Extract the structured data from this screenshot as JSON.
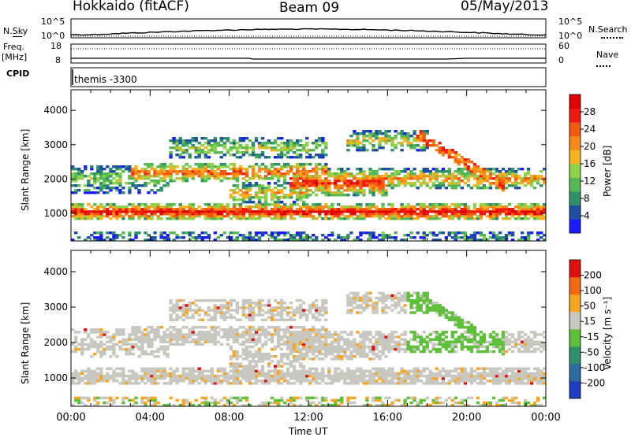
{
  "header": {
    "title": "Hokkaido (fitACF)",
    "beam": "Beam 09",
    "date": "05/May/2013"
  },
  "top_panels": {
    "nsky_label": "N.Sky",
    "nsearch_label": "N.Search",
    "nsky_ticks": [
      "10^5",
      "10^0"
    ],
    "nsearch_ticks": [
      "10^5",
      "10^0"
    ],
    "freq_label": "Freq.",
    "freq_unit": "[MHz]",
    "freq_ticks": [
      "18",
      "8"
    ],
    "nave_label": "Nave",
    "nave_ticks": [
      "60",
      "0"
    ],
    "cpid_label": "CPID",
    "cpid_value": "themis -3300"
  },
  "chart_data": [
    {
      "type": "heatmap",
      "ylabel": "Slant Range [km]",
      "xlabel": "",
      "yticks": [
        "1000",
        "2000",
        "3000",
        "4000"
      ],
      "ylim": [
        200,
        4600
      ],
      "xlim": [
        0,
        24
      ],
      "colorbar": {
        "label": "Power [dB]",
        "ticks": [
          "4",
          "8",
          "12",
          "16",
          "20",
          "24",
          "28"
        ],
        "colors": [
          "#1a1aff",
          "#1f4fa0",
          "#2e8f6a",
          "#55b855",
          "#8fd34a",
          "#f5b323",
          "#f58a1a",
          "#f25a10",
          "#ee1c10",
          "#e00000"
        ]
      }
    },
    {
      "type": "heatmap",
      "ylabel": "Slant Range [km]",
      "xlabel": "Time UT",
      "yticks": [
        "1000",
        "2000",
        "3000",
        "4000"
      ],
      "xticks": [
        "00:00",
        "04:00",
        "08:00",
        "12:00",
        "16:00",
        "20:00",
        "00:00"
      ],
      "ylim": [
        200,
        4600
      ],
      "xlim": [
        0,
        24
      ],
      "colorbar": {
        "label": "Velocity [m s⁻¹]",
        "ticks": [
          "200",
          "100",
          "50",
          "15",
          "-15",
          "-50",
          "-100",
          "-200"
        ],
        "colors": [
          "#1f3fc0",
          "#2c6aa0",
          "#2e8f6a",
          "#5fc03a",
          "#c8c8c0",
          "#f5a623",
          "#f06a10",
          "#e01010"
        ]
      }
    }
  ]
}
